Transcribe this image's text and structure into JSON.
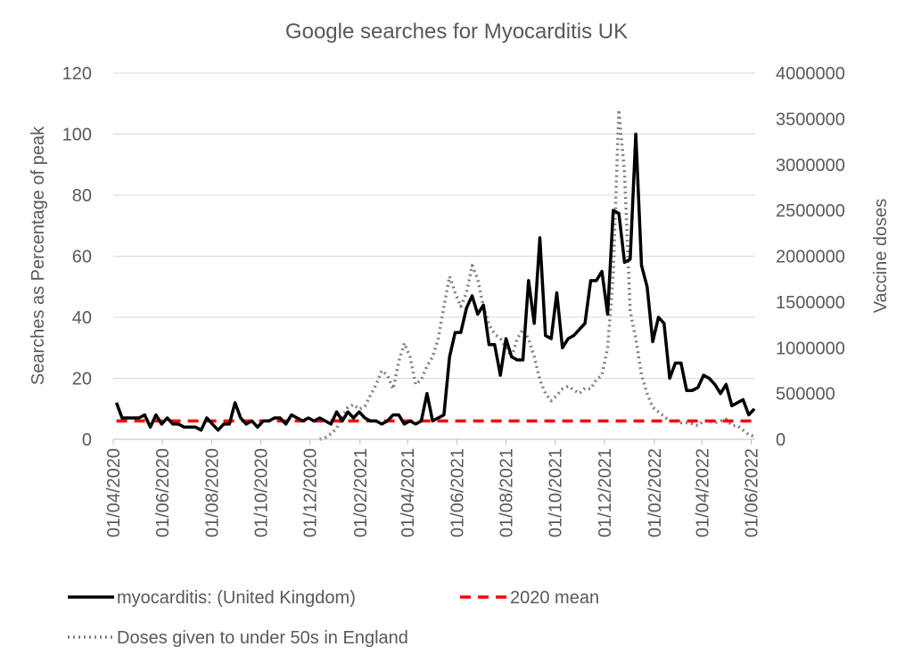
{
  "chart_data": {
    "type": "line",
    "title": "Google searches for Myocarditis UK",
    "y_left_label": "Searches as Percentage of peak",
    "y_right_label": "Vaccine doses",
    "y_left_ticks": [
      "0",
      "20",
      "40",
      "60",
      "80",
      "100",
      "120"
    ],
    "y_right_ticks": [
      "0",
      "500000",
      "1000000",
      "1500000",
      "2000000",
      "2500000",
      "3000000",
      "3500000",
      "4000000"
    ],
    "x_ticks": [
      "01/04/2020",
      "01/06/2020",
      "01/08/2020",
      "01/10/2020",
      "01/12/2020",
      "01/02/2021",
      "01/04/2021",
      "01/06/2021",
      "01/08/2021",
      "01/10/2021",
      "01/12/2021",
      "01/02/2022",
      "01/04/2022",
      "01/06/2022"
    ],
    "ylim_left": [
      0,
      120
    ],
    "ylim_right": [
      0,
      4000000
    ],
    "grid": "horizontal",
    "legend_position": "bottom",
    "series": [
      {
        "name": "myocarditis: (United Kingdom)",
        "axis": "left",
        "color": "#000000",
        "style": "solid",
        "points": [
          [
            "2020-04-05",
            12
          ],
          [
            "2020-04-12",
            7
          ],
          [
            "2020-04-19",
            7
          ],
          [
            "2020-04-26",
            7
          ],
          [
            "2020-05-03",
            7
          ],
          [
            "2020-05-10",
            8
          ],
          [
            "2020-05-17",
            4
          ],
          [
            "2020-05-24",
            8
          ],
          [
            "2020-05-31",
            5
          ],
          [
            "2020-06-07",
            7
          ],
          [
            "2020-06-14",
            5
          ],
          [
            "2020-06-21",
            5
          ],
          [
            "2020-06-28",
            4
          ],
          [
            "2020-07-05",
            4
          ],
          [
            "2020-07-12",
            4
          ],
          [
            "2020-07-19",
            3
          ],
          [
            "2020-07-26",
            7
          ],
          [
            "2020-08-02",
            5
          ],
          [
            "2020-08-09",
            3
          ],
          [
            "2020-08-16",
            5
          ],
          [
            "2020-08-23",
            5
          ],
          [
            "2020-08-30",
            12
          ],
          [
            "2020-09-06",
            7
          ],
          [
            "2020-09-13",
            5
          ],
          [
            "2020-09-20",
            6
          ],
          [
            "2020-09-27",
            4
          ],
          [
            "2020-10-04",
            6
          ],
          [
            "2020-10-11",
            6
          ],
          [
            "2020-10-18",
            7
          ],
          [
            "2020-10-25",
            7
          ],
          [
            "2020-11-01",
            5
          ],
          [
            "2020-11-08",
            8
          ],
          [
            "2020-11-15",
            7
          ],
          [
            "2020-11-22",
            6
          ],
          [
            "2020-11-29",
            7
          ],
          [
            "2020-12-06",
            6
          ],
          [
            "2020-12-13",
            7
          ],
          [
            "2020-12-20",
            6
          ],
          [
            "2020-12-27",
            5
          ],
          [
            "2021-01-03",
            9
          ],
          [
            "2021-01-10",
            6
          ],
          [
            "2021-01-17",
            9
          ],
          [
            "2021-01-24",
            7
          ],
          [
            "2021-01-31",
            9
          ],
          [
            "2021-02-07",
            7
          ],
          [
            "2021-02-14",
            6
          ],
          [
            "2021-02-21",
            6
          ],
          [
            "2021-02-28",
            5
          ],
          [
            "2021-03-07",
            6
          ],
          [
            "2021-03-14",
            8
          ],
          [
            "2021-03-21",
            8
          ],
          [
            "2021-03-28",
            5
          ],
          [
            "2021-04-04",
            6
          ],
          [
            "2021-04-11",
            5
          ],
          [
            "2021-04-18",
            6
          ],
          [
            "2021-04-25",
            15
          ],
          [
            "2021-05-02",
            6
          ],
          [
            "2021-05-09",
            7
          ],
          [
            "2021-05-16",
            8
          ],
          [
            "2021-05-23",
            27
          ],
          [
            "2021-05-30",
            35
          ],
          [
            "2021-06-06",
            35
          ],
          [
            "2021-06-13",
            43
          ],
          [
            "2021-06-20",
            47
          ],
          [
            "2021-06-27",
            41
          ],
          [
            "2021-07-04",
            44
          ],
          [
            "2021-07-11",
            31
          ],
          [
            "2021-07-18",
            31
          ],
          [
            "2021-07-25",
            21
          ],
          [
            "2021-08-01",
            33
          ],
          [
            "2021-08-08",
            27
          ],
          [
            "2021-08-15",
            26
          ],
          [
            "2021-08-22",
            26
          ],
          [
            "2021-08-29",
            52
          ],
          [
            "2021-09-05",
            38
          ],
          [
            "2021-09-12",
            66
          ],
          [
            "2021-09-19",
            34
          ],
          [
            "2021-09-26",
            33
          ],
          [
            "2021-10-03",
            48
          ],
          [
            "2021-10-10",
            30
          ],
          [
            "2021-10-17",
            33
          ],
          [
            "2021-10-24",
            34
          ],
          [
            "2021-10-31",
            36
          ],
          [
            "2021-11-07",
            38
          ],
          [
            "2021-11-14",
            52
          ],
          [
            "2021-11-21",
            52
          ],
          [
            "2021-11-28",
            55
          ],
          [
            "2021-12-05",
            41
          ],
          [
            "2021-12-12",
            75
          ],
          [
            "2021-12-19",
            74
          ],
          [
            "2021-12-26",
            58
          ],
          [
            "2022-01-02",
            59
          ],
          [
            "2022-01-09",
            100
          ],
          [
            "2022-01-16",
            57
          ],
          [
            "2022-01-23",
            50
          ],
          [
            "2022-01-30",
            32
          ],
          [
            "2022-02-06",
            40
          ],
          [
            "2022-02-13",
            38
          ],
          [
            "2022-02-20",
            20
          ],
          [
            "2022-02-27",
            25
          ],
          [
            "2022-03-06",
            25
          ],
          [
            "2022-03-13",
            16
          ],
          [
            "2022-03-20",
            16
          ],
          [
            "2022-03-27",
            17
          ],
          [
            "2022-04-03",
            21
          ],
          [
            "2022-04-10",
            20
          ],
          [
            "2022-04-17",
            18
          ],
          [
            "2022-04-24",
            15
          ],
          [
            "2022-05-01",
            18
          ],
          [
            "2022-05-08",
            11
          ],
          [
            "2022-05-15",
            12
          ],
          [
            "2022-05-22",
            13
          ],
          [
            "2022-05-29",
            8
          ],
          [
            "2022-06-05",
            10
          ]
        ]
      },
      {
        "name": "2020 mean",
        "axis": "left",
        "color": "#ff0000",
        "style": "dashed",
        "points": [
          [
            "2020-04-05",
            6
          ],
          [
            "2022-06-05",
            6
          ]
        ]
      },
      {
        "name": "Doses given to under 50s in England",
        "axis": "right",
        "color": "#808080",
        "style": "dotted",
        "points": [
          [
            "2020-12-13",
            0
          ],
          [
            "2020-12-20",
            20000
          ],
          [
            "2020-12-27",
            60000
          ],
          [
            "2021-01-03",
            120000
          ],
          [
            "2021-01-10",
            250000
          ],
          [
            "2021-01-17",
            350000
          ],
          [
            "2021-01-24",
            380000
          ],
          [
            "2021-01-31",
            330000
          ],
          [
            "2021-02-07",
            360000
          ],
          [
            "2021-02-14",
            480000
          ],
          [
            "2021-02-21",
            600000
          ],
          [
            "2021-02-28",
            750000
          ],
          [
            "2021-03-07",
            700000
          ],
          [
            "2021-03-14",
            550000
          ],
          [
            "2021-03-21",
            850000
          ],
          [
            "2021-03-28",
            1050000
          ],
          [
            "2021-04-04",
            900000
          ],
          [
            "2021-04-11",
            600000
          ],
          [
            "2021-04-18",
            650000
          ],
          [
            "2021-04-25",
            800000
          ],
          [
            "2021-05-02",
            900000
          ],
          [
            "2021-05-09",
            1100000
          ],
          [
            "2021-05-16",
            1450000
          ],
          [
            "2021-05-23",
            1780000
          ],
          [
            "2021-05-30",
            1600000
          ],
          [
            "2021-06-06",
            1450000
          ],
          [
            "2021-06-13",
            1600000
          ],
          [
            "2021-06-20",
            1900000
          ],
          [
            "2021-06-27",
            1750000
          ],
          [
            "2021-07-04",
            1450000
          ],
          [
            "2021-07-11",
            1250000
          ],
          [
            "2021-07-18",
            1150000
          ],
          [
            "2021-07-25",
            1100000
          ],
          [
            "2021-08-01",
            1000000
          ],
          [
            "2021-08-08",
            900000
          ],
          [
            "2021-08-15",
            1100000
          ],
          [
            "2021-08-22",
            1200000
          ],
          [
            "2021-08-29",
            1100000
          ],
          [
            "2021-09-05",
            900000
          ],
          [
            "2021-09-12",
            650000
          ],
          [
            "2021-09-19",
            500000
          ],
          [
            "2021-09-26",
            420000
          ],
          [
            "2021-10-03",
            480000
          ],
          [
            "2021-10-10",
            550000
          ],
          [
            "2021-10-17",
            580000
          ],
          [
            "2021-10-24",
            540000
          ],
          [
            "2021-10-31",
            500000
          ],
          [
            "2021-11-07",
            560000
          ],
          [
            "2021-11-14",
            550000
          ],
          [
            "2021-11-21",
            650000
          ],
          [
            "2021-11-28",
            700000
          ],
          [
            "2021-12-05",
            1000000
          ],
          [
            "2021-12-12",
            1800000
          ],
          [
            "2021-12-19",
            3600000
          ],
          [
            "2021-12-26",
            2900000
          ],
          [
            "2022-01-02",
            1400000
          ],
          [
            "2022-01-09",
            1100000
          ],
          [
            "2022-01-16",
            700000
          ],
          [
            "2022-01-23",
            500000
          ],
          [
            "2022-01-30",
            350000
          ],
          [
            "2022-02-06",
            300000
          ],
          [
            "2022-02-13",
            250000
          ],
          [
            "2022-02-20",
            200000
          ],
          [
            "2022-02-27",
            200000
          ],
          [
            "2022-03-06",
            180000
          ],
          [
            "2022-03-13",
            180000
          ],
          [
            "2022-03-20",
            170000
          ],
          [
            "2022-03-27",
            150000
          ],
          [
            "2022-04-03",
            200000
          ],
          [
            "2022-04-10",
            200000
          ],
          [
            "2022-04-17",
            180000
          ],
          [
            "2022-04-24",
            200000
          ],
          [
            "2022-05-01",
            220000
          ],
          [
            "2022-05-08",
            150000
          ],
          [
            "2022-05-15",
            150000
          ],
          [
            "2022-05-22",
            100000
          ],
          [
            "2022-05-29",
            50000
          ],
          [
            "2022-06-05",
            30000
          ]
        ]
      }
    ]
  }
}
